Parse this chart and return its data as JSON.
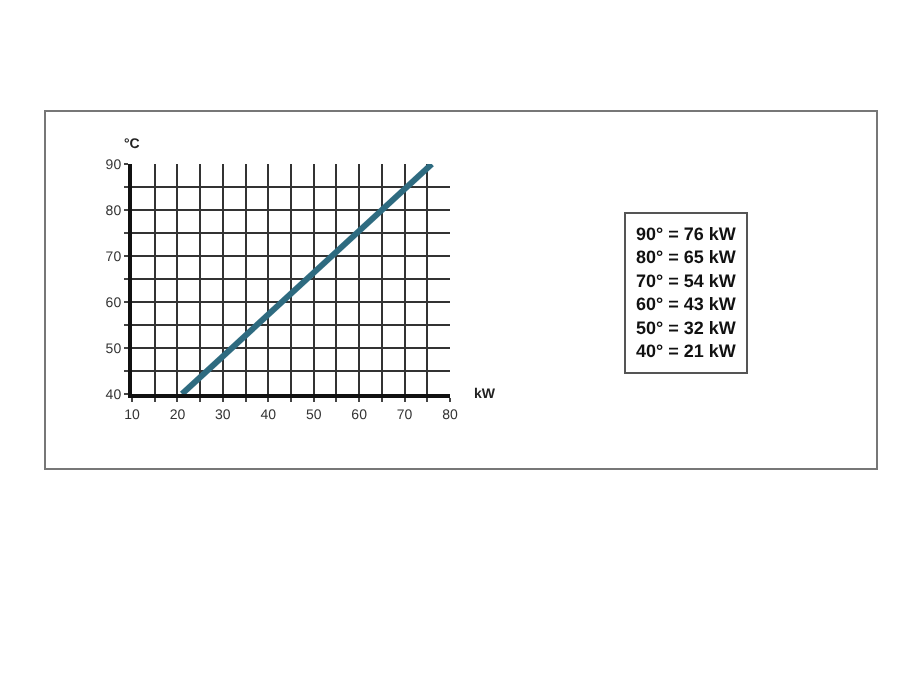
{
  "chart_data": {
    "type": "line",
    "xlabel": "kW",
    "ylabel": "°C",
    "x": [
      21,
      76
    ],
    "series": [
      {
        "color": "#2e6b80",
        "values": [
          40,
          90
        ]
      }
    ],
    "xlim": [
      10,
      80
    ],
    "ylim": [
      40,
      90
    ],
    "xticks": [
      10,
      {
        "value": 15,
        "label": null
      },
      20,
      {
        "value": 25,
        "label": null
      },
      30,
      {
        "value": 35,
        "label": null
      },
      40,
      {
        "value": 45,
        "label": null
      },
      50,
      {
        "value": 55,
        "label": null
      },
      60,
      {
        "value": 65,
        "label": null
      },
      70,
      {
        "value": 75,
        "label": null
      },
      80
    ],
    "yticks": [
      40,
      {
        "value": 45,
        "label": null
      },
      50,
      {
        "value": 55,
        "label": null
      },
      60,
      {
        "value": 65,
        "label": null
      },
      70,
      {
        "value": 75,
        "label": null
      },
      80,
      {
        "value": 85,
        "label": null
      },
      90
    ],
    "grid": true,
    "marker": "none",
    "line_style": "solid",
    "annotations": [
      "90° = 76 kW",
      "80° = 65 kW",
      "70° = 54 kW",
      "60° = 43 kW",
      "50° = 32 kW",
      "40° = 21 kW"
    ]
  }
}
